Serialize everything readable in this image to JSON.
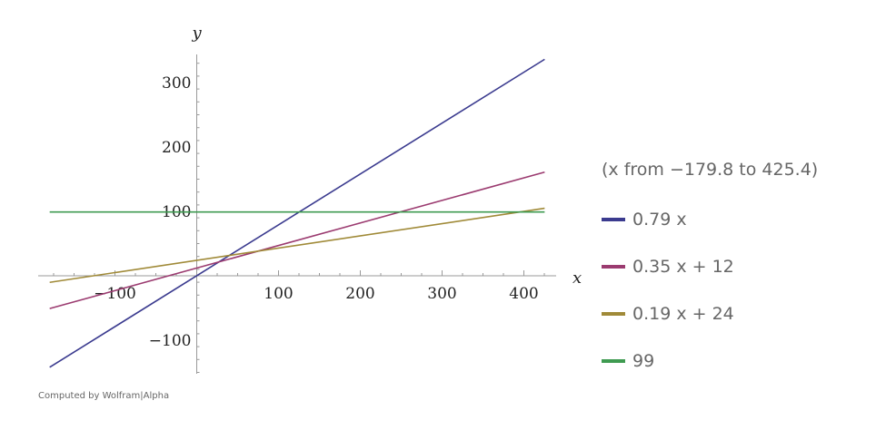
{
  "chart_data": {
    "type": "line",
    "xlabel": "x",
    "ylabel": "y",
    "xlim": [
      -179.8,
      425.4
    ],
    "ylim": [
      -150,
      345
    ],
    "x_ticks": [
      -100,
      100,
      200,
      300,
      400
    ],
    "y_ticks": [
      300,
      200,
      100,
      -100
    ],
    "x_tick_labels": [
      "−100",
      "100",
      "200",
      "300",
      "400"
    ],
    "y_tick_labels": [
      "300",
      "200",
      "100",
      "−100"
    ],
    "range_note": "(x from −179.8 to 425.4)",
    "series": [
      {
        "name": "0.79 x",
        "slope": 0.79,
        "intercept": 0,
        "color": "#3b3b8f",
        "x": [
          -179.8,
          425.4
        ],
        "y": [
          -142.0,
          336.1
        ]
      },
      {
        "name": "0.35 x + 12",
        "slope": 0.35,
        "intercept": 12,
        "color": "#9b3b70",
        "x": [
          -179.8,
          425.4
        ],
        "y": [
          -50.9,
          160.9
        ]
      },
      {
        "name": "0.19 x + 24",
        "slope": 0.19,
        "intercept": 24,
        "color": "#a08a38",
        "x": [
          -179.8,
          425.4
        ],
        "y": [
          -10.2,
          104.8
        ]
      },
      {
        "name": "99",
        "slope": 0,
        "intercept": 99,
        "color": "#3f9b51",
        "x": [
          -179.8,
          425.4
        ],
        "y": [
          99,
          99
        ]
      }
    ]
  },
  "legend": {
    "range_note": "(x from −179.8 to 425.4)",
    "items": [
      {
        "label": "0.79 x",
        "color": "#3b3b8f"
      },
      {
        "label": "0.35 x + 12",
        "color": "#9b3b70"
      },
      {
        "label": "0.19 x + 24",
        "color": "#a08a38"
      },
      {
        "label": "99",
        "color": "#3f9b51"
      }
    ]
  },
  "footer": {
    "credit": "Computed by Wolfram|Alpha"
  }
}
